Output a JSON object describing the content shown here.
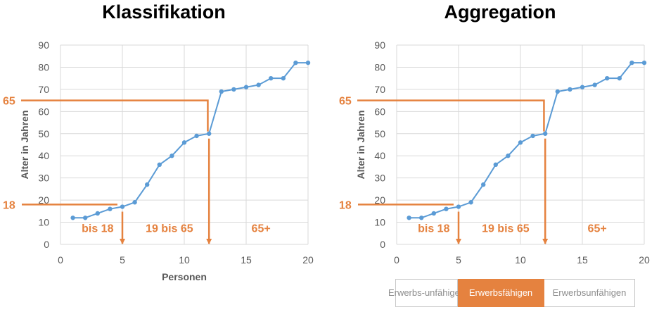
{
  "titles": [
    "Klassifikation",
    "Aggregation"
  ],
  "chart_data": [
    {
      "type": "line",
      "title": "Klassifikation",
      "xlabel": "Personen",
      "ylabel": "Alter in Jahren",
      "xlim": [
        0,
        20
      ],
      "ylim": [
        0,
        90
      ],
      "xticks": [
        "0",
        "5",
        "10",
        "15",
        "20"
      ],
      "yticks": [
        "0",
        "10",
        "20",
        "30",
        "40",
        "50",
        "60",
        "70",
        "80",
        "90"
      ],
      "grid": true,
      "series": [
        {
          "x": [
            1,
            2,
            3,
            4,
            5,
            6,
            7,
            8,
            9,
            10,
            11,
            12,
            13,
            14,
            15,
            16,
            17,
            18,
            19,
            20
          ],
          "values": [
            12,
            12,
            14,
            16,
            17,
            19,
            27,
            36,
            40,
            46,
            49,
            50,
            69,
            70,
            71,
            72,
            75,
            75,
            82,
            82
          ]
        }
      ],
      "annotations": [
        {
          "label": "18",
          "value": 18
        },
        {
          "label": "65",
          "value": 65
        }
      ],
      "ranges": [
        "bis 18",
        "19 bis 65",
        "65+"
      ],
      "range_x": [
        3,
        8.8,
        16.2
      ],
      "range_y": 5.5,
      "threshold_x": [
        4.6,
        11.9
      ],
      "arrow_x": [
        5,
        12
      ]
    },
    {
      "type": "line",
      "title": "Aggregation",
      "xlabel": "",
      "ylabel": "Alter in Jahren",
      "xlim": [
        0,
        20
      ],
      "ylim": [
        0,
        90
      ],
      "xticks": [
        "0",
        "5",
        "10",
        "15",
        "20"
      ],
      "yticks": [
        "0",
        "10",
        "20",
        "30",
        "40",
        "50",
        "60",
        "70",
        "80",
        "90"
      ],
      "grid": true,
      "series": [
        {
          "x": [
            1,
            2,
            3,
            4,
            5,
            6,
            7,
            8,
            9,
            10,
            11,
            12,
            13,
            14,
            15,
            16,
            17,
            18,
            19,
            20
          ],
          "values": [
            12,
            12,
            14,
            16,
            17,
            19,
            27,
            36,
            40,
            46,
            49,
            50,
            69,
            70,
            71,
            72,
            75,
            75,
            82,
            82
          ]
        }
      ],
      "annotations": [
        {
          "label": "18",
          "value": 18
        },
        {
          "label": "65",
          "value": 65
        }
      ],
      "ranges": [
        "bis 18",
        "19 bis 65",
        "65+"
      ],
      "range_x": [
        3,
        8.8,
        16.2
      ],
      "range_y": 5.5,
      "threshold_x": [
        4.6,
        11.9
      ],
      "arrow_x": [
        5,
        12
      ]
    }
  ],
  "legend": {
    "items": [
      {
        "label": "Erwerbs-\nunfähigen",
        "active": false
      },
      {
        "label": "Erwerbsfähigen",
        "active": true
      },
      {
        "label": "Erwerbsunfähigen",
        "active": false
      }
    ]
  },
  "colors": {
    "line": "#5b9bd5",
    "accent": "#e5823f",
    "grid": "#d9d9d9",
    "tick_text": "#595959",
    "axis_title": "#595959"
  }
}
